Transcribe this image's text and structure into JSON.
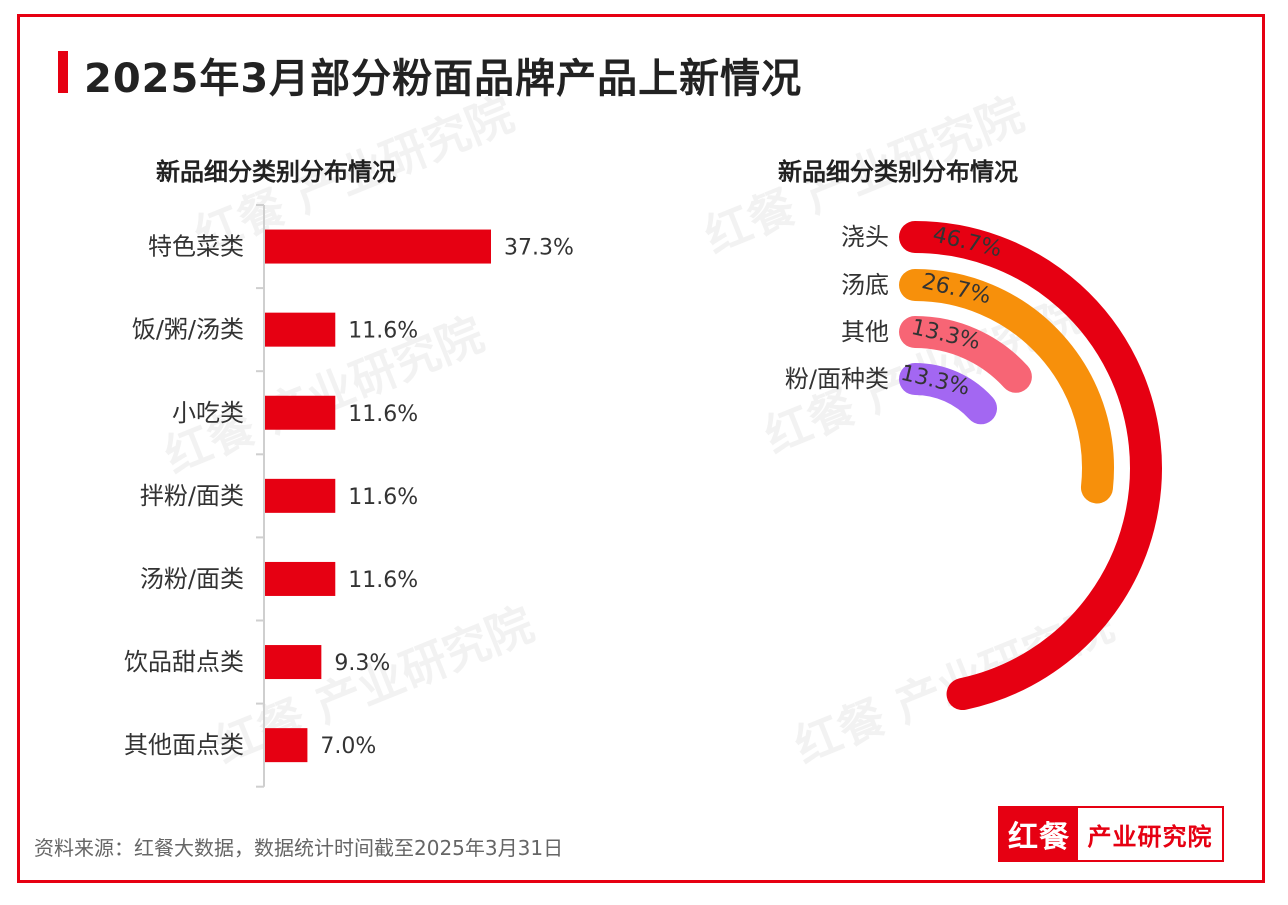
{
  "title": "2025年3月部分粉面品牌产品上新情况",
  "source": "资料来源：红餐大数据，数据统计时间截至2025年3月31日",
  "logo": {
    "mark": "红餐",
    "text": "产业研究院"
  },
  "watermark": "红餐 产业研究院",
  "colors": {
    "accent": "#e60012",
    "orange": "#f7900b",
    "pink": "#f76575",
    "purple": "#a367f2"
  },
  "chart_data": [
    {
      "type": "bar",
      "orientation": "horizontal",
      "title": "新品细分类别分布情况",
      "categories": [
        "特色菜类",
        "饭/粥/汤类",
        "小吃类",
        "拌粉/面类",
        "汤粉/面类",
        "饮品甜点类",
        "其他面点类"
      ],
      "values": [
        37.3,
        11.6,
        11.6,
        11.6,
        11.6,
        9.3,
        7.0
      ],
      "labels": [
        "37.3%",
        "11.6%",
        "11.6%",
        "11.6%",
        "11.6%",
        "9.3%",
        "7.0%"
      ],
      "unit": "%",
      "color": "#e60012",
      "grid": false
    },
    {
      "type": "radial-bar",
      "title": "新品细分类别分布情况",
      "categories": [
        "浇头",
        "汤底",
        "其他",
        "粉/面种类"
      ],
      "values": [
        46.7,
        26.7,
        13.3,
        13.3
      ],
      "labels": [
        "46.7%",
        "26.7%",
        "13.3%",
        "13.3%"
      ],
      "unit": "%",
      "colors": [
        "#e60012",
        "#f7900b",
        "#f76575",
        "#a367f2"
      ],
      "legend": "none"
    }
  ]
}
